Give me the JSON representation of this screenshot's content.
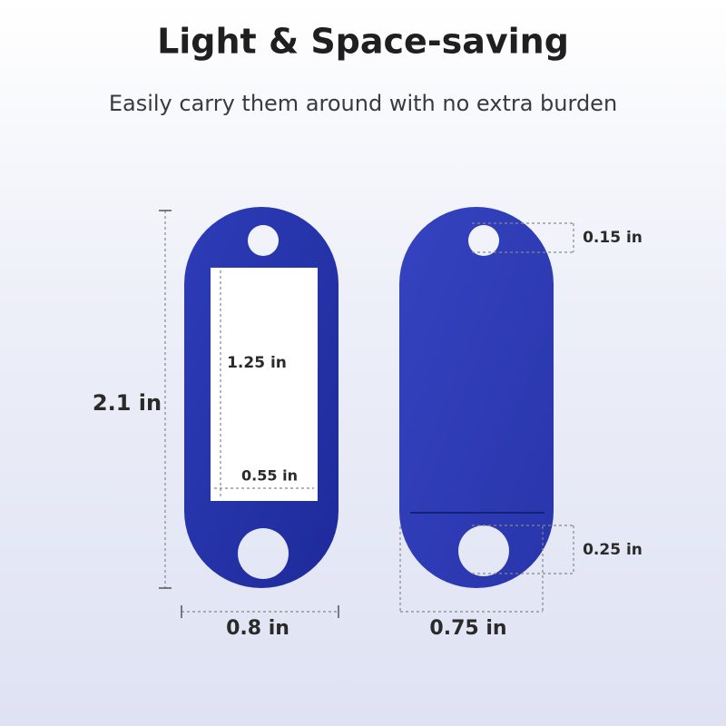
{
  "header": {
    "title": "Light & Space-saving",
    "subtitle": "Easily carry them around with no extra burden"
  },
  "dimensions": {
    "height": "2.1 in",
    "window_height": "1.25 in",
    "window_width": "0.55 in",
    "width_left": "0.8 in",
    "width_right": "0.75 in",
    "top_hole": "0.15 in",
    "bottom_hole": "0.25 in"
  }
}
